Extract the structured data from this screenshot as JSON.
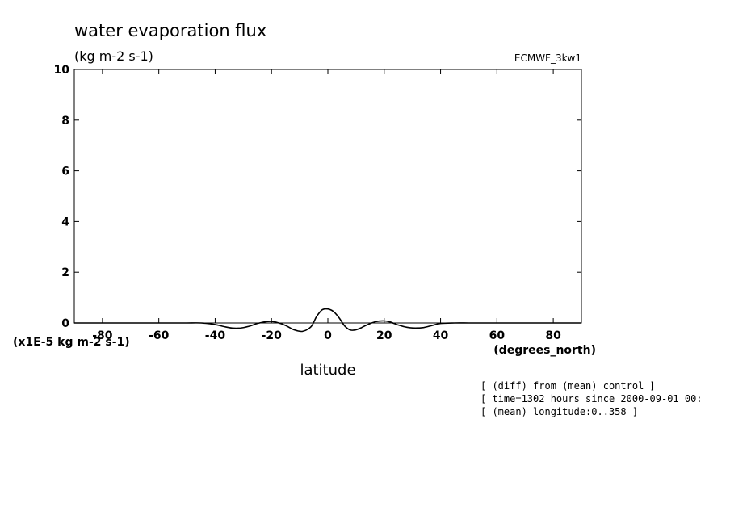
{
  "chart_data": {
    "type": "line",
    "title": "water evaporation flux",
    "units": "(kg m-2 s-1)",
    "dataset_label": "ECMWF_3kw1",
    "scale_label": "(x1E-5 kg m-2 s-1)",
    "xlabel": "latitude",
    "x_units_label": "(degrees_north)",
    "xlim": [
      -90,
      90
    ],
    "ylim": [
      0,
      10
    ],
    "x_ticks": [
      -80,
      -60,
      -40,
      -20,
      0,
      20,
      40,
      60,
      80
    ],
    "x_tick_labels": [
      "-80",
      "-60",
      "-40",
      "-20",
      "0",
      "20",
      "40",
      "60",
      "80"
    ],
    "y_ticks": [
      0,
      2,
      4,
      6,
      8,
      10
    ],
    "y_tick_labels": [
      "0",
      "2",
      "4",
      "6",
      "8",
      "10"
    ],
    "grid": false,
    "series": [
      {
        "x": [
          -90,
          -85,
          -80,
          -75,
          -70,
          -65,
          -60,
          -55,
          -50,
          -45,
          -40,
          -37,
          -34,
          -31,
          -28,
          -25,
          -22,
          -20,
          -18,
          -15,
          -12,
          -9,
          -6,
          -4,
          -2,
          0,
          2,
          4,
          6,
          8,
          10,
          12,
          14,
          17,
          20,
          22,
          25,
          28,
          31,
          34,
          37,
          40,
          45,
          50,
          55,
          60,
          65,
          70,
          75,
          80,
          85,
          90
        ],
        "y": [
          0,
          0,
          0,
          0,
          0,
          0,
          0,
          0,
          0,
          0,
          -0.06,
          -0.14,
          -0.2,
          -0.2,
          -0.13,
          -0.02,
          0.05,
          0.06,
          0.02,
          -0.1,
          -0.27,
          -0.33,
          -0.15,
          0.25,
          0.52,
          0.55,
          0.45,
          0.2,
          -0.12,
          -0.28,
          -0.27,
          -0.18,
          -0.07,
          0.05,
          0.08,
          0.04,
          -0.08,
          -0.17,
          -0.2,
          -0.18,
          -0.1,
          -0.02,
          0,
          0,
          0,
          0,
          0,
          0,
          0,
          0,
          0,
          0
        ]
      }
    ]
  },
  "notes": [
    "[ (diff) from (mean) control ]",
    "[ time=1302 hours since 2000-09-01 00:",
    "[ (mean) longitude:0..358 ]"
  ]
}
